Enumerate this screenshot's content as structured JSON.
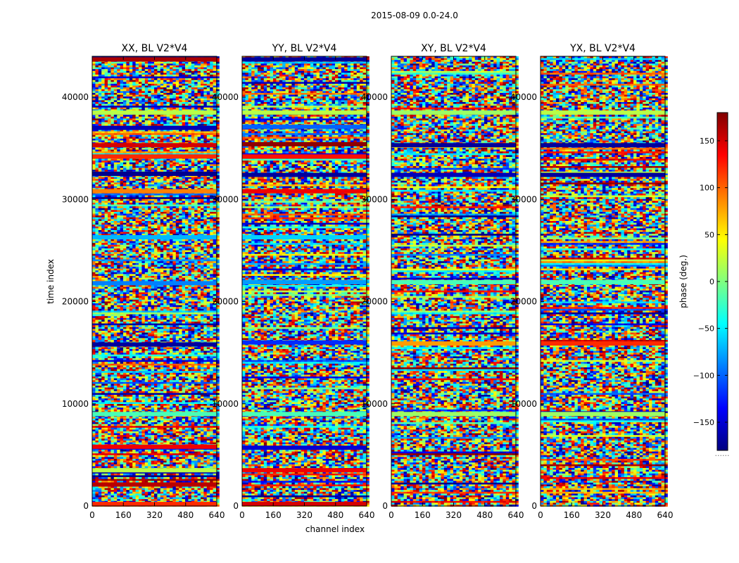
{
  "chart_data": {
    "type": "heatmap",
    "title": "2015-08-09 0.0-24.0",
    "xlabel": "channel index",
    "ylabel": "time index",
    "xlim": [
      0,
      640
    ],
    "ylim": [
      0,
      44000
    ],
    "xticks": [
      0,
      160,
      320,
      480,
      640
    ],
    "yticks": [
      0,
      10000,
      20000,
      30000,
      40000
    ],
    "colorbar": {
      "label": "phase (deg.)",
      "range": [
        -180,
        180
      ],
      "ticks": [
        -150,
        -100,
        -50,
        0,
        50,
        100,
        150
      ],
      "colormap": "jet",
      "extra_label": "......"
    },
    "panels": [
      {
        "title": "XX, BL V2*V4",
        "bands": [
          {
            "t": 200,
            "phase": 120
          },
          {
            "t": 2100,
            "phase": 160
          },
          {
            "t": 3500,
            "phase": 20
          },
          {
            "t": 5800,
            "phase": 140
          },
          {
            "t": 9000,
            "phase": -20
          },
          {
            "t": 15800,
            "phase": -170
          },
          {
            "t": 21800,
            "phase": -90
          },
          {
            "t": 26300,
            "phase": -70
          },
          {
            "t": 30800,
            "phase": 90
          },
          {
            "t": 32500,
            "phase": -175
          },
          {
            "t": 34200,
            "phase": 120
          },
          {
            "t": 35300,
            "phase": 150
          },
          {
            "t": 37000,
            "phase": -160
          },
          {
            "t": 38500,
            "phase": 20
          },
          {
            "t": 43700,
            "phase": 165
          }
        ]
      },
      {
        "title": "YY, BL V2*V4",
        "bands": [
          {
            "t": 200,
            "phase": 150
          },
          {
            "t": 3500,
            "phase": 140
          },
          {
            "t": 5700,
            "phase": -150
          },
          {
            "t": 9000,
            "phase": -20
          },
          {
            "t": 16000,
            "phase": -120
          },
          {
            "t": 21900,
            "phase": -80
          },
          {
            "t": 26300,
            "phase": -60
          },
          {
            "t": 30800,
            "phase": 140
          },
          {
            "t": 32400,
            "phase": -170
          },
          {
            "t": 34200,
            "phase": 130
          },
          {
            "t": 35400,
            "phase": 175
          },
          {
            "t": 37100,
            "phase": -100
          },
          {
            "t": 38500,
            "phase": 20
          },
          {
            "t": 43700,
            "phase": -170
          }
        ]
      },
      {
        "title": "XY, BL V2*V4",
        "bands": [
          {
            "t": 9000,
            "phase": 10
          },
          {
            "t": 15900,
            "phase": 80
          },
          {
            "t": 21900,
            "phase": -20
          },
          {
            "t": 32400,
            "phase": -160
          },
          {
            "t": 35300,
            "phase": -170
          },
          {
            "t": 38500,
            "phase": 10
          }
        ]
      },
      {
        "title": "YX, BL V2*V4",
        "bands": [
          {
            "t": 9000,
            "phase": 10
          },
          {
            "t": 15900,
            "phase": 120
          },
          {
            "t": 21900,
            "phase": -20
          },
          {
            "t": 32400,
            "phase": -170
          },
          {
            "t": 35300,
            "phase": -170
          },
          {
            "t": 38500,
            "phase": 20
          }
        ]
      }
    ]
  }
}
